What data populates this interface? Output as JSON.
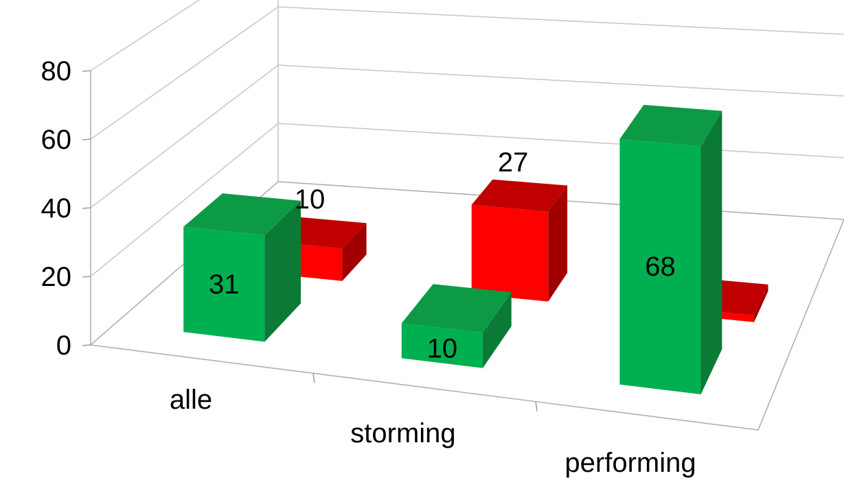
{
  "chart_data": {
    "type": "bar",
    "categories": [
      "alle",
      "storming",
      "performing"
    ],
    "series": [
      {
        "values": [
          31,
          10,
          68
        ],
        "color": "#00b050",
        "top_color": "#0d9a45",
        "side_color": "#0a7a36",
        "labels": [
          "31",
          "10",
          "68"
        ]
      },
      {
        "values": [
          10,
          27,
          2
        ],
        "color": "#ff0000",
        "top_color": "#c00000",
        "side_color": "#a00000",
        "labels": [
          "10",
          "27",
          ""
        ]
      }
    ],
    "y_ticks": [
      "0",
      "20",
      "40",
      "60",
      "80"
    ],
    "ylim": [
      0,
      80
    ],
    "grid": true,
    "legend": "none",
    "title": "",
    "xlabel": "",
    "ylabel": ""
  }
}
